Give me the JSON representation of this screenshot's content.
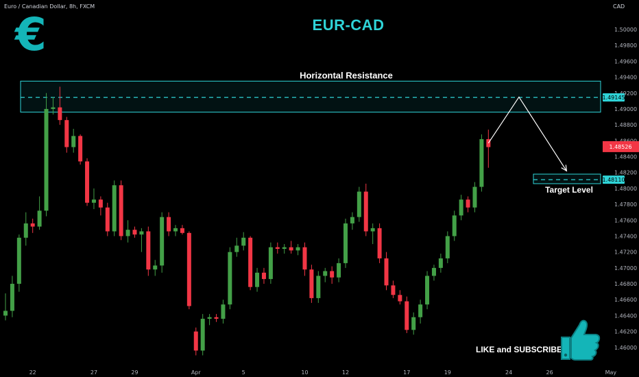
{
  "header": {
    "symbol": "Euro / Canadian Dollar, 8h, FXCM",
    "currency": "CAD"
  },
  "title": "EUR-CAD",
  "logo": {
    "glyph": "€",
    "color": "#14b5b8"
  },
  "cta": {
    "label": "LIKE and SUBSCRIBE",
    "icon": "thumbs-up-icon"
  },
  "colors": {
    "up": "#43a047",
    "down": "#f23645",
    "accent": "#2fd4d8",
    "background": "#000000"
  },
  "chart_data": {
    "type": "candlestick",
    "timeframe": "8h",
    "y_axis": {
      "min": 1.458,
      "max": 1.5025,
      "ticks": [
        1.5,
        1.498,
        1.496,
        1.494,
        1.492,
        1.49,
        1.488,
        1.486,
        1.484,
        1.482,
        1.48,
        1.478,
        1.476,
        1.474,
        1.472,
        1.47,
        1.468,
        1.466,
        1.464,
        1.462,
        1.46
      ],
      "tick_labels": [
        "1.50000",
        "1.49800",
        "1.49600",
        "1.49400",
        "1.49200",
        "1.49000",
        "1.48800",
        "1.48600",
        "1.48400",
        "1.48200",
        "1.48000",
        "1.47800",
        "1.47600",
        "1.47400",
        "1.47200",
        "1.47000",
        "1.46800",
        "1.46600",
        "1.46400",
        "1.46200",
        "1.46000"
      ]
    },
    "x_axis": {
      "labels": [
        {
          "text": "22",
          "index": 4
        },
        {
          "text": "27",
          "index": 13
        },
        {
          "text": "29",
          "index": 19
        },
        {
          "text": "Apr",
          "index": 28
        },
        {
          "text": "5",
          "index": 35
        },
        {
          "text": "10",
          "index": 44
        },
        {
          "text": "12",
          "index": 50
        },
        {
          "text": "17",
          "index": 59
        },
        {
          "text": "19",
          "index": 65
        },
        {
          "text": "24",
          "index": 74
        },
        {
          "text": "26",
          "index": 80
        },
        {
          "text": "May",
          "index": 89
        }
      ]
    },
    "candles": [
      {
        "o": 1.464,
        "h": 1.4668,
        "l": 1.4634,
        "c": 1.4646
      },
      {
        "o": 1.4646,
        "h": 1.469,
        "l": 1.4638,
        "c": 1.468
      },
      {
        "o": 1.468,
        "h": 1.4742,
        "l": 1.467,
        "c": 1.4738
      },
      {
        "o": 1.4738,
        "h": 1.477,
        "l": 1.4728,
        "c": 1.4756
      },
      {
        "o": 1.4756,
        "h": 1.4762,
        "l": 1.4744,
        "c": 1.4752
      },
      {
        "o": 1.4752,
        "h": 1.479,
        "l": 1.4748,
        "c": 1.4772
      },
      {
        "o": 1.4772,
        "h": 1.492,
        "l": 1.4765,
        "c": 1.49
      },
      {
        "o": 1.49,
        "h": 1.4915,
        "l": 1.4893,
        "c": 1.4902
      },
      {
        "o": 1.4902,
        "h": 1.4928,
        "l": 1.488,
        "c": 1.4886
      },
      {
        "o": 1.4886,
        "h": 1.489,
        "l": 1.4845,
        "c": 1.4852
      },
      {
        "o": 1.4852,
        "h": 1.4875,
        "l": 1.4845,
        "c": 1.4866
      },
      {
        "o": 1.4866,
        "h": 1.4868,
        "l": 1.483,
        "c": 1.4834
      },
      {
        "o": 1.4834,
        "h": 1.4838,
        "l": 1.4778,
        "c": 1.4782
      },
      {
        "o": 1.4782,
        "h": 1.48,
        "l": 1.4774,
        "c": 1.4786
      },
      {
        "o": 1.4786,
        "h": 1.479,
        "l": 1.4766,
        "c": 1.4776
      },
      {
        "o": 1.4776,
        "h": 1.4782,
        "l": 1.474,
        "c": 1.4746
      },
      {
        "o": 1.4746,
        "h": 1.481,
        "l": 1.474,
        "c": 1.4804
      },
      {
        "o": 1.4804,
        "h": 1.481,
        "l": 1.4735,
        "c": 1.474
      },
      {
        "o": 1.474,
        "h": 1.476,
        "l": 1.4732,
        "c": 1.4748
      },
      {
        "o": 1.4748,
        "h": 1.4752,
        "l": 1.4738,
        "c": 1.4742
      },
      {
        "o": 1.4742,
        "h": 1.475,
        "l": 1.472,
        "c": 1.4746
      },
      {
        "o": 1.4746,
        "h": 1.4752,
        "l": 1.469,
        "c": 1.4698
      },
      {
        "o": 1.4698,
        "h": 1.471,
        "l": 1.469,
        "c": 1.4703
      },
      {
        "o": 1.4703,
        "h": 1.477,
        "l": 1.4694,
        "c": 1.4764
      },
      {
        "o": 1.4764,
        "h": 1.477,
        "l": 1.474,
        "c": 1.4746
      },
      {
        "o": 1.4746,
        "h": 1.4754,
        "l": 1.474,
        "c": 1.475
      },
      {
        "o": 1.475,
        "h": 1.4754,
        "l": 1.4742,
        "c": 1.4744
      },
      {
        "o": 1.4744,
        "h": 1.4746,
        "l": 1.4648,
        "c": 1.4652
      },
      {
        "o": 1.462,
        "h": 1.4625,
        "l": 1.459,
        "c": 1.4596
      },
      {
        "o": 1.4596,
        "h": 1.4642,
        "l": 1.459,
        "c": 1.4636
      },
      {
        "o": 1.4636,
        "h": 1.4642,
        "l": 1.4628,
        "c": 1.4638
      },
      {
        "o": 1.4638,
        "h": 1.4642,
        "l": 1.4632,
        "c": 1.4636
      },
      {
        "o": 1.4636,
        "h": 1.466,
        "l": 1.463,
        "c": 1.4654
      },
      {
        "o": 1.4654,
        "h": 1.4726,
        "l": 1.4648,
        "c": 1.472
      },
      {
        "o": 1.472,
        "h": 1.4738,
        "l": 1.4714,
        "c": 1.4728
      },
      {
        "o": 1.4728,
        "h": 1.4745,
        "l": 1.4722,
        "c": 1.4738
      },
      {
        "o": 1.4738,
        "h": 1.474,
        "l": 1.4672,
        "c": 1.4676
      },
      {
        "o": 1.4676,
        "h": 1.47,
        "l": 1.467,
        "c": 1.4694
      },
      {
        "o": 1.4694,
        "h": 1.47,
        "l": 1.468,
        "c": 1.4686
      },
      {
        "o": 1.4686,
        "h": 1.4732,
        "l": 1.468,
        "c": 1.4726
      },
      {
        "o": 1.4726,
        "h": 1.4732,
        "l": 1.4718,
        "c": 1.4724
      },
      {
        "o": 1.4724,
        "h": 1.473,
        "l": 1.4718,
        "c": 1.4726
      },
      {
        "o": 1.4726,
        "h": 1.4734,
        "l": 1.4718,
        "c": 1.4722
      },
      {
        "o": 1.4722,
        "h": 1.473,
        "l": 1.4716,
        "c": 1.4726
      },
      {
        "o": 1.4726,
        "h": 1.4732,
        "l": 1.469,
        "c": 1.4698
      },
      {
        "o": 1.4698,
        "h": 1.4704,
        "l": 1.4656,
        "c": 1.4662
      },
      {
        "o": 1.4662,
        "h": 1.4696,
        "l": 1.4656,
        "c": 1.469
      },
      {
        "o": 1.469,
        "h": 1.47,
        "l": 1.4682,
        "c": 1.4696
      },
      {
        "o": 1.4696,
        "h": 1.4702,
        "l": 1.468,
        "c": 1.4688
      },
      {
        "o": 1.4688,
        "h": 1.4712,
        "l": 1.4682,
        "c": 1.4706
      },
      {
        "o": 1.4706,
        "h": 1.4762,
        "l": 1.47,
        "c": 1.4756
      },
      {
        "o": 1.4756,
        "h": 1.477,
        "l": 1.4748,
        "c": 1.4764
      },
      {
        "o": 1.4764,
        "h": 1.4802,
        "l": 1.4758,
        "c": 1.4796
      },
      {
        "o": 1.4796,
        "h": 1.4806,
        "l": 1.474,
        "c": 1.4746
      },
      {
        "o": 1.4746,
        "h": 1.4756,
        "l": 1.473,
        "c": 1.475
      },
      {
        "o": 1.475,
        "h": 1.4756,
        "l": 1.4706,
        "c": 1.4712
      },
      {
        "o": 1.4712,
        "h": 1.472,
        "l": 1.4672,
        "c": 1.4678
      },
      {
        "o": 1.4678,
        "h": 1.4684,
        "l": 1.4662,
        "c": 1.4666
      },
      {
        "o": 1.4666,
        "h": 1.4672,
        "l": 1.4654,
        "c": 1.4658
      },
      {
        "o": 1.4658,
        "h": 1.4664,
        "l": 1.4618,
        "c": 1.4622
      },
      {
        "o": 1.4622,
        "h": 1.4644,
        "l": 1.4616,
        "c": 1.4638
      },
      {
        "o": 1.4638,
        "h": 1.466,
        "l": 1.463,
        "c": 1.4654
      },
      {
        "o": 1.4654,
        "h": 1.4696,
        "l": 1.4648,
        "c": 1.469
      },
      {
        "o": 1.469,
        "h": 1.4704,
        "l": 1.4684,
        "c": 1.47
      },
      {
        "o": 1.47,
        "h": 1.4718,
        "l": 1.4694,
        "c": 1.4712
      },
      {
        "o": 1.4712,
        "h": 1.4746,
        "l": 1.4706,
        "c": 1.474
      },
      {
        "o": 1.474,
        "h": 1.4772,
        "l": 1.4734,
        "c": 1.4766
      },
      {
        "o": 1.4766,
        "h": 1.4792,
        "l": 1.476,
        "c": 1.4786
      },
      {
        "o": 1.4786,
        "h": 1.479,
        "l": 1.477,
        "c": 1.4776
      },
      {
        "o": 1.4776,
        "h": 1.4808,
        "l": 1.477,
        "c": 1.4802
      },
      {
        "o": 1.4802,
        "h": 1.4868,
        "l": 1.4796,
        "c": 1.4862
      },
      {
        "o": 1.4862,
        "h": 1.4874,
        "l": 1.4826,
        "c": 1.4852
      }
    ],
    "zones": [
      {
        "name": "Horizontal Resistance",
        "top": 1.4935,
        "bottom": 1.4896,
        "line": 1.49145,
        "line_label": "1.49145"
      },
      {
        "name": "Target Level",
        "top": 1.4818,
        "bottom": 1.4806,
        "line": 1.4811,
        "line_label": "1.48110"
      }
    ],
    "projection": {
      "from": {
        "index": 71,
        "value": 1.4857
      },
      "peak": {
        "index": 75.5,
        "value": 1.4915
      },
      "to": {
        "index": 82.5,
        "value": 1.4822
      }
    },
    "last_price": {
      "label": "1.48526",
      "value": 1.48526
    }
  }
}
